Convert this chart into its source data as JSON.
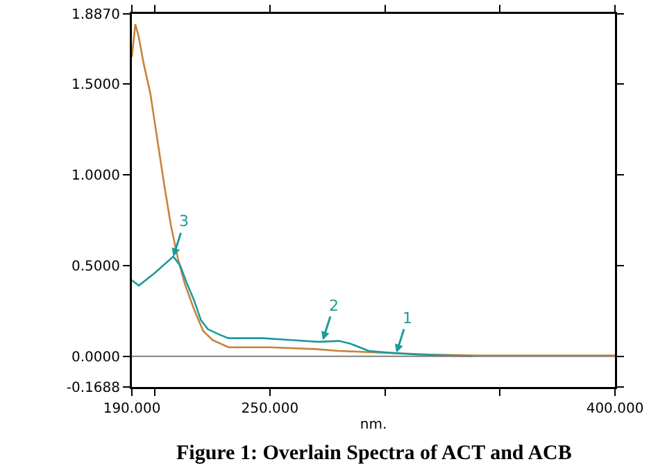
{
  "chart_data": {
    "type": "line",
    "xlabel": "nm.",
    "xlim": [
      190,
      400
    ],
    "xticks": [
      {
        "value": 190,
        "label": "190.000"
      },
      {
        "value": 200,
        "label": null
      },
      {
        "value": 250,
        "label": "250.000"
      },
      {
        "value": 300,
        "label": null
      },
      {
        "value": 350,
        "label": null
      },
      {
        "value": 400,
        "label": "400.000"
      }
    ],
    "ylim": [
      -0.1688,
      1.887
    ],
    "yticks": [
      {
        "value": -0.1688,
        "label": "-0.1688"
      },
      {
        "value": 0,
        "label": "0.0000"
      },
      {
        "value": 0.5,
        "label": "0.5000"
      },
      {
        "value": 1,
        "label": "1.0000"
      },
      {
        "value": 1.5,
        "label": "1.5000"
      },
      {
        "value": 1.887,
        "label": "1.8870"
      }
    ],
    "grid": false,
    "marker": "none",
    "line_style": "solid",
    "series": [
      {
        "color": "#c8823a",
        "x": [
          190,
          191.5,
          193,
          195,
          198,
          201,
          204,
          207,
          210,
          213,
          217,
          221,
          225,
          232,
          250,
          270,
          280,
          300,
          320,
          340,
          400
        ],
        "values": [
          1.65,
          1.83,
          1.76,
          1.62,
          1.45,
          1.2,
          0.95,
          0.72,
          0.54,
          0.4,
          0.26,
          0.14,
          0.09,
          0.05,
          0.05,
          0.04,
          0.03,
          0.02,
          0.01,
          0.005,
          0.005
        ]
      },
      {
        "color": "#1a9a9a",
        "x": [
          190,
          193,
          200,
          208,
          211,
          214,
          217,
          220,
          223,
          228,
          232,
          247,
          259,
          271,
          280,
          285,
          293,
          302,
          314,
          326,
          338
        ],
        "values": [
          0.42,
          0.39,
          0.46,
          0.55,
          0.5,
          0.4,
          0.31,
          0.2,
          0.15,
          0.12,
          0.1,
          0.1,
          0.09,
          0.08,
          0.085,
          0.07,
          0.03,
          0.02,
          0.01,
          0.005,
          0
        ]
      }
    ],
    "ref_lines": [
      {
        "axis": "y",
        "value": 0,
        "color": "#808080"
      }
    ],
    "annotations": [
      {
        "text": "3",
        "x": 208,
        "y": 0.55
      },
      {
        "text": "2",
        "x": 273,
        "y": 0.09
      },
      {
        "text": "1",
        "x": 305,
        "y": 0.02
      },
      "Figure 1: Overlain Spectra of ACT and ACB"
    ]
  }
}
